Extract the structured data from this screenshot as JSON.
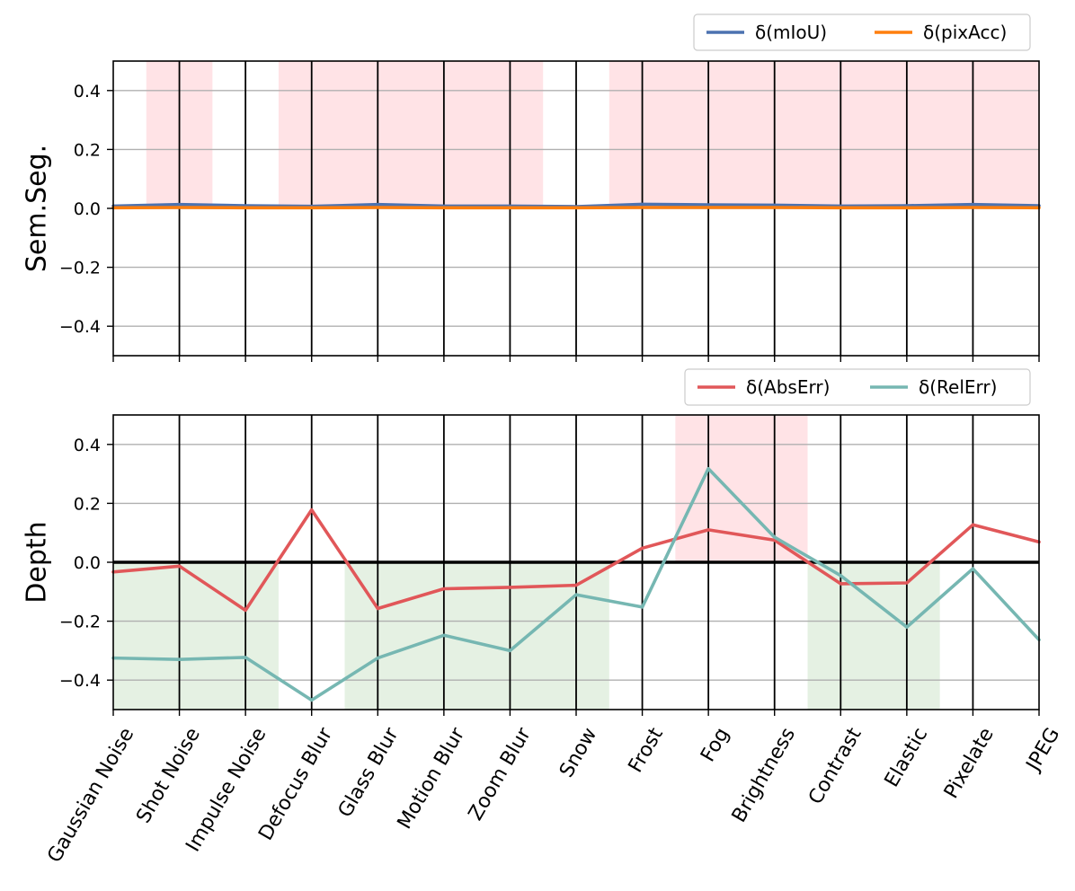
{
  "chart_data": [
    {
      "type": "line",
      "ylabel": "Sem.Seg.",
      "xlabel": "",
      "title": "",
      "categories": [
        "Gaussian Noise",
        "Shot Noise",
        "Impulse Noise",
        "Defocus Blur",
        "Glass Blur",
        "Motion Blur",
        "Zoom Blur",
        "Snow",
        "Frost",
        "Fog",
        "Brightness",
        "Contrast",
        "Elastic",
        "Pixelate",
        "JPEG"
      ],
      "ylim": [
        -0.5,
        0.5
      ],
      "yticks": [
        -0.4,
        -0.2,
        0.0,
        0.2,
        0.4
      ],
      "ytick_labels": [
        "−0.4",
        "−0.2",
        "0.0",
        "0.2",
        "0.4"
      ],
      "grid": "horizontal",
      "legend_position": "top-right",
      "series": [
        {
          "name": "δ(mIoU)",
          "color": "#4c72b0",
          "values": [
            0.008,
            0.013,
            0.009,
            0.007,
            0.013,
            0.008,
            0.008,
            0.006,
            0.014,
            0.012,
            0.011,
            0.008,
            0.009,
            0.013,
            0.009
          ]
        },
        {
          "name": "δ(pixAcc)",
          "color": "#ff7f0e",
          "values": [
            0.002,
            0.003,
            0.002,
            0.002,
            0.003,
            0.002,
            0.002,
            0.002,
            0.003,
            0.003,
            0.003,
            0.002,
            0.002,
            0.003,
            0.002
          ]
        }
      ],
      "highlight_bands": [
        {
          "from": 0.5,
          "to": 1.5,
          "color": "red",
          "range": [
            0,
            0.5
          ]
        },
        {
          "from": 2.5,
          "to": 6.5,
          "color": "red",
          "range": [
            0,
            0.5
          ]
        },
        {
          "from": 7.5,
          "to": 14.0,
          "color": "red",
          "range": [
            0,
            0.5
          ]
        }
      ]
    },
    {
      "type": "line",
      "ylabel": "Depth",
      "xlabel": "",
      "title": "",
      "categories": [
        "Gaussian Noise",
        "Shot Noise",
        "Impulse Noise",
        "Defocus Blur",
        "Glass Blur",
        "Motion Blur",
        "Zoom Blur",
        "Snow",
        "Frost",
        "Fog",
        "Brightness",
        "Contrast",
        "Elastic",
        "Pixelate",
        "JPEG"
      ],
      "ylim": [
        -0.5,
        0.5
      ],
      "yticks": [
        -0.4,
        -0.2,
        0.0,
        0.2,
        0.4
      ],
      "ytick_labels": [
        "−0.4",
        "−0.2",
        "0.0",
        "0.2",
        "0.4"
      ],
      "grid": "horizontal",
      "legend_position": "top-right",
      "zero_line": true,
      "series": [
        {
          "name": "δ(AbsErr)",
          "color": "#e15759",
          "values": [
            -0.033,
            -0.013,
            -0.163,
            0.178,
            -0.157,
            -0.09,
            -0.085,
            -0.078,
            0.048,
            0.11,
            0.075,
            -0.073,
            -0.07,
            0.127,
            0.069
          ]
        },
        {
          "name": "δ(RelErr)",
          "color": "#76b7b2",
          "values": [
            -0.325,
            -0.33,
            -0.323,
            -0.468,
            -0.325,
            -0.248,
            -0.3,
            -0.11,
            -0.152,
            0.318,
            0.085,
            -0.045,
            -0.22,
            -0.022,
            -0.263
          ]
        }
      ],
      "highlight_bands": [
        {
          "from": 8.5,
          "to": 10.5,
          "color": "red",
          "range": [
            0,
            0.5
          ]
        },
        {
          "from": 0.0,
          "to": 2.5,
          "color": "green",
          "range": [
            -0.5,
            0
          ]
        },
        {
          "from": 3.5,
          "to": 7.5,
          "color": "green",
          "range": [
            -0.5,
            0
          ]
        },
        {
          "from": 10.5,
          "to": 12.5,
          "color": "green",
          "range": [
            -0.5,
            0
          ]
        }
      ]
    }
  ]
}
